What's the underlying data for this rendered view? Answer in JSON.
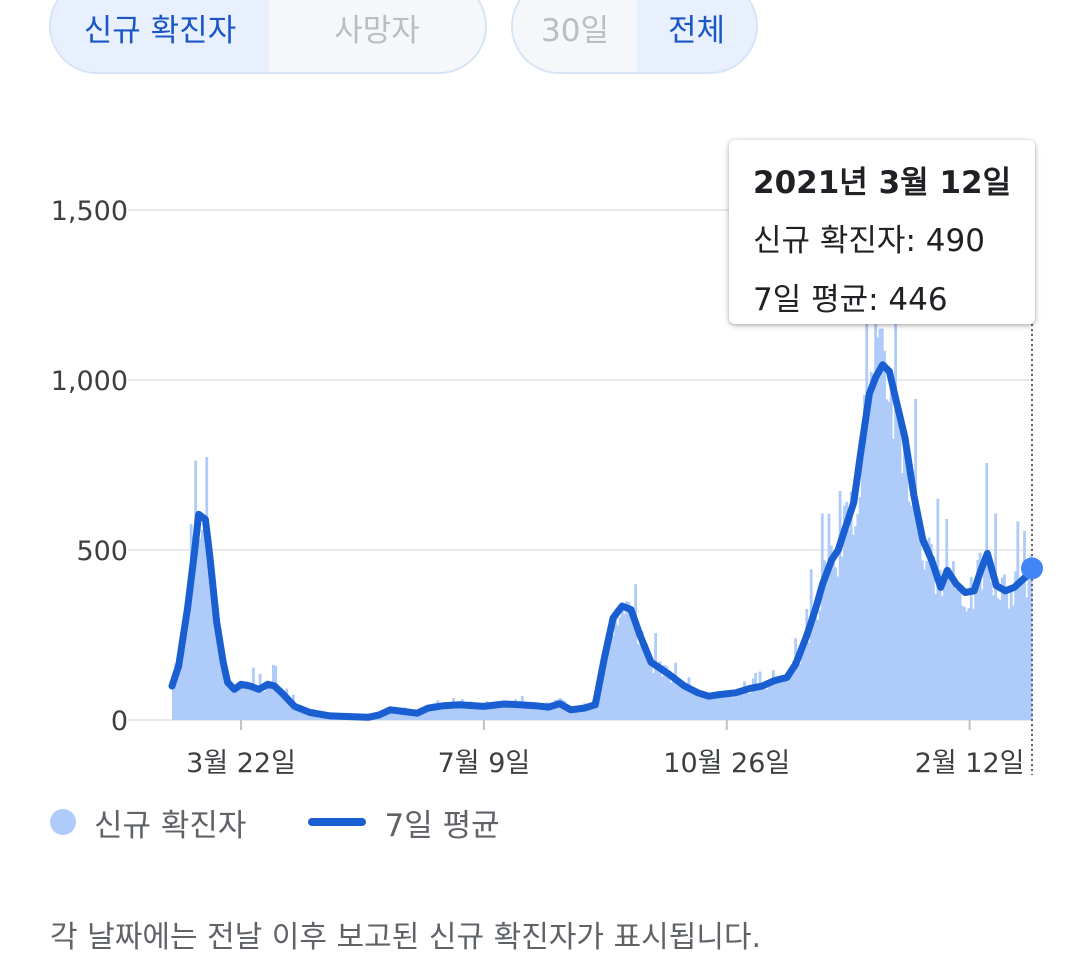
{
  "tabs": {
    "metric": [
      {
        "label": "신규 확진자",
        "active": true
      },
      {
        "label": "사망자",
        "active": false
      }
    ],
    "range": [
      {
        "label": "30일",
        "active": false
      },
      {
        "label": "전체",
        "active": true
      }
    ]
  },
  "tooltip": {
    "date": "2021년 3월 12일",
    "new_cases_line": "신규 확진자: 490",
    "avg_line": "7일 평균: 446"
  },
  "legend": {
    "cases_label": "신규 확진자",
    "avg_label": "7일 평균"
  },
  "footnote": "각 날짜에는 전날 이후 보고된 신규 확진자가 표시됩니다.",
  "colors": {
    "bars": "#aecbfa",
    "line": "#1a5fd1",
    "marker": "#4285f4",
    "grid": "#e8eaed",
    "active_tab_text": "#1a56c6"
  },
  "chart_data": {
    "type": "bar",
    "series": [
      {
        "name": "신규 확진자",
        "kind": "bar"
      },
      {
        "name": "7일 평균",
        "kind": "line"
      }
    ],
    "x_range": [
      "2020-02-20",
      "2021-03-12"
    ],
    "y_ticks": [
      "0",
      "500",
      "1,000",
      "1,500"
    ],
    "ylim": [
      0,
      1600
    ],
    "x_ticks": [
      {
        "label": "3월 22일",
        "date": "2020-03-22"
      },
      {
        "label": "7월 9일",
        "date": "2020-07-09"
      },
      {
        "label": "10월 26일",
        "date": "2020-10-26"
      },
      {
        "label": "2월 12일",
        "date": "2021-02-12"
      }
    ],
    "avg_points": [
      [
        "2020-02-20",
        100
      ],
      [
        "2020-02-23",
        160
      ],
      [
        "2020-02-27",
        330
      ],
      [
        "2020-03-01",
        490
      ],
      [
        "2020-03-03",
        605
      ],
      [
        "2020-03-06",
        590
      ],
      [
        "2020-03-08",
        480
      ],
      [
        "2020-03-11",
        290
      ],
      [
        "2020-03-14",
        170
      ],
      [
        "2020-03-16",
        110
      ],
      [
        "2020-03-19",
        90
      ],
      [
        "2020-03-22",
        105
      ],
      [
        "2020-03-26",
        100
      ],
      [
        "2020-03-30",
        90
      ],
      [
        "2020-04-03",
        105
      ],
      [
        "2020-04-06",
        100
      ],
      [
        "2020-04-10",
        75
      ],
      [
        "2020-04-15",
        40
      ],
      [
        "2020-04-22",
        22
      ],
      [
        "2020-05-01",
        12
      ],
      [
        "2020-05-10",
        10
      ],
      [
        "2020-05-18",
        8
      ],
      [
        "2020-05-23",
        15
      ],
      [
        "2020-05-28",
        30
      ],
      [
        "2020-06-03",
        25
      ],
      [
        "2020-06-09",
        20
      ],
      [
        "2020-06-14",
        35
      ],
      [
        "2020-06-21",
        42
      ],
      [
        "2020-06-28",
        45
      ],
      [
        "2020-07-09",
        40
      ],
      [
        "2020-07-18",
        47
      ],
      [
        "2020-07-25",
        45
      ],
      [
        "2020-08-01",
        42
      ],
      [
        "2020-08-07",
        38
      ],
      [
        "2020-08-12",
        48
      ],
      [
        "2020-08-17",
        30
      ],
      [
        "2020-08-23",
        35
      ],
      [
        "2020-08-28",
        45
      ],
      [
        "2020-09-01",
        180
      ],
      [
        "2020-09-05",
        300
      ],
      [
        "2020-09-09",
        335
      ],
      [
        "2020-09-13",
        325
      ],
      [
        "2020-09-17",
        250
      ],
      [
        "2020-09-22",
        170
      ],
      [
        "2020-09-30",
        135
      ],
      [
        "2020-10-07",
        100
      ],
      [
        "2020-10-13",
        80
      ],
      [
        "2020-10-18",
        70
      ],
      [
        "2020-10-23",
        75
      ],
      [
        "2020-10-30",
        80
      ],
      [
        "2020-11-05",
        92
      ],
      [
        "2020-11-11",
        100
      ],
      [
        "2020-11-16",
        115
      ],
      [
        "2020-11-22",
        125
      ],
      [
        "2020-11-26",
        165
      ],
      [
        "2020-12-01",
        250
      ],
      [
        "2020-12-05",
        330
      ],
      [
        "2020-12-08",
        400
      ],
      [
        "2020-12-12",
        470
      ],
      [
        "2020-12-15",
        500
      ],
      [
        "2020-12-18",
        560
      ],
      [
        "2020-12-22",
        640
      ],
      [
        "2020-12-25",
        780
      ],
      [
        "2020-12-29",
        960
      ],
      [
        "2021-01-01",
        1010
      ],
      [
        "2021-01-04",
        1045
      ],
      [
        "2021-01-07",
        1025
      ],
      [
        "2021-01-10",
        940
      ],
      [
        "2021-01-14",
        830
      ],
      [
        "2021-01-18",
        660
      ],
      [
        "2021-01-22",
        530
      ],
      [
        "2021-01-26",
        470
      ],
      [
        "2021-01-30",
        390
      ],
      [
        "2021-02-02",
        440
      ],
      [
        "2021-02-06",
        400
      ],
      [
        "2021-02-10",
        375
      ],
      [
        "2021-02-14",
        380
      ],
      [
        "2021-02-17",
        440
      ],
      [
        "2021-02-20",
        490
      ],
      [
        "2021-02-24",
        395
      ],
      [
        "2021-02-28",
        380
      ],
      [
        "2021-03-04",
        390
      ],
      [
        "2021-03-09",
        420
      ],
      [
        "2021-03-12",
        446
      ]
    ],
    "marker": {
      "date": "2021-03-12",
      "value": 446
    }
  }
}
